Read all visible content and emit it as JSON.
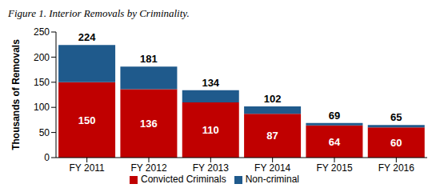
{
  "chart_data": {
    "type": "bar",
    "title": "Figure 1. Interior Removals by Criminality.",
    "y_label": "Thousands of Removals",
    "categories": [
      "FY 2011",
      "FY 2012",
      "FY 2013",
      "FY 2014",
      "FY 2015",
      "FY 2016"
    ],
    "series": [
      {
        "name": "Convicted Criminals",
        "color": "#C00000",
        "values": [
          150,
          136,
          110,
          87,
          64,
          60
        ],
        "data_labels": true
      },
      {
        "name": "Non-criminal",
        "color": "#1F5A8C",
        "values": [
          74,
          45,
          24,
          15,
          5,
          5
        ],
        "data_labels": false
      }
    ],
    "totals": [
      224,
      181,
      134,
      102,
      69,
      65
    ],
    "stacked": true,
    "ylim": [
      0,
      250
    ],
    "yticks": [
      0,
      50,
      100,
      150,
      200,
      250
    ],
    "grid": false,
    "legend": "bottom"
  }
}
